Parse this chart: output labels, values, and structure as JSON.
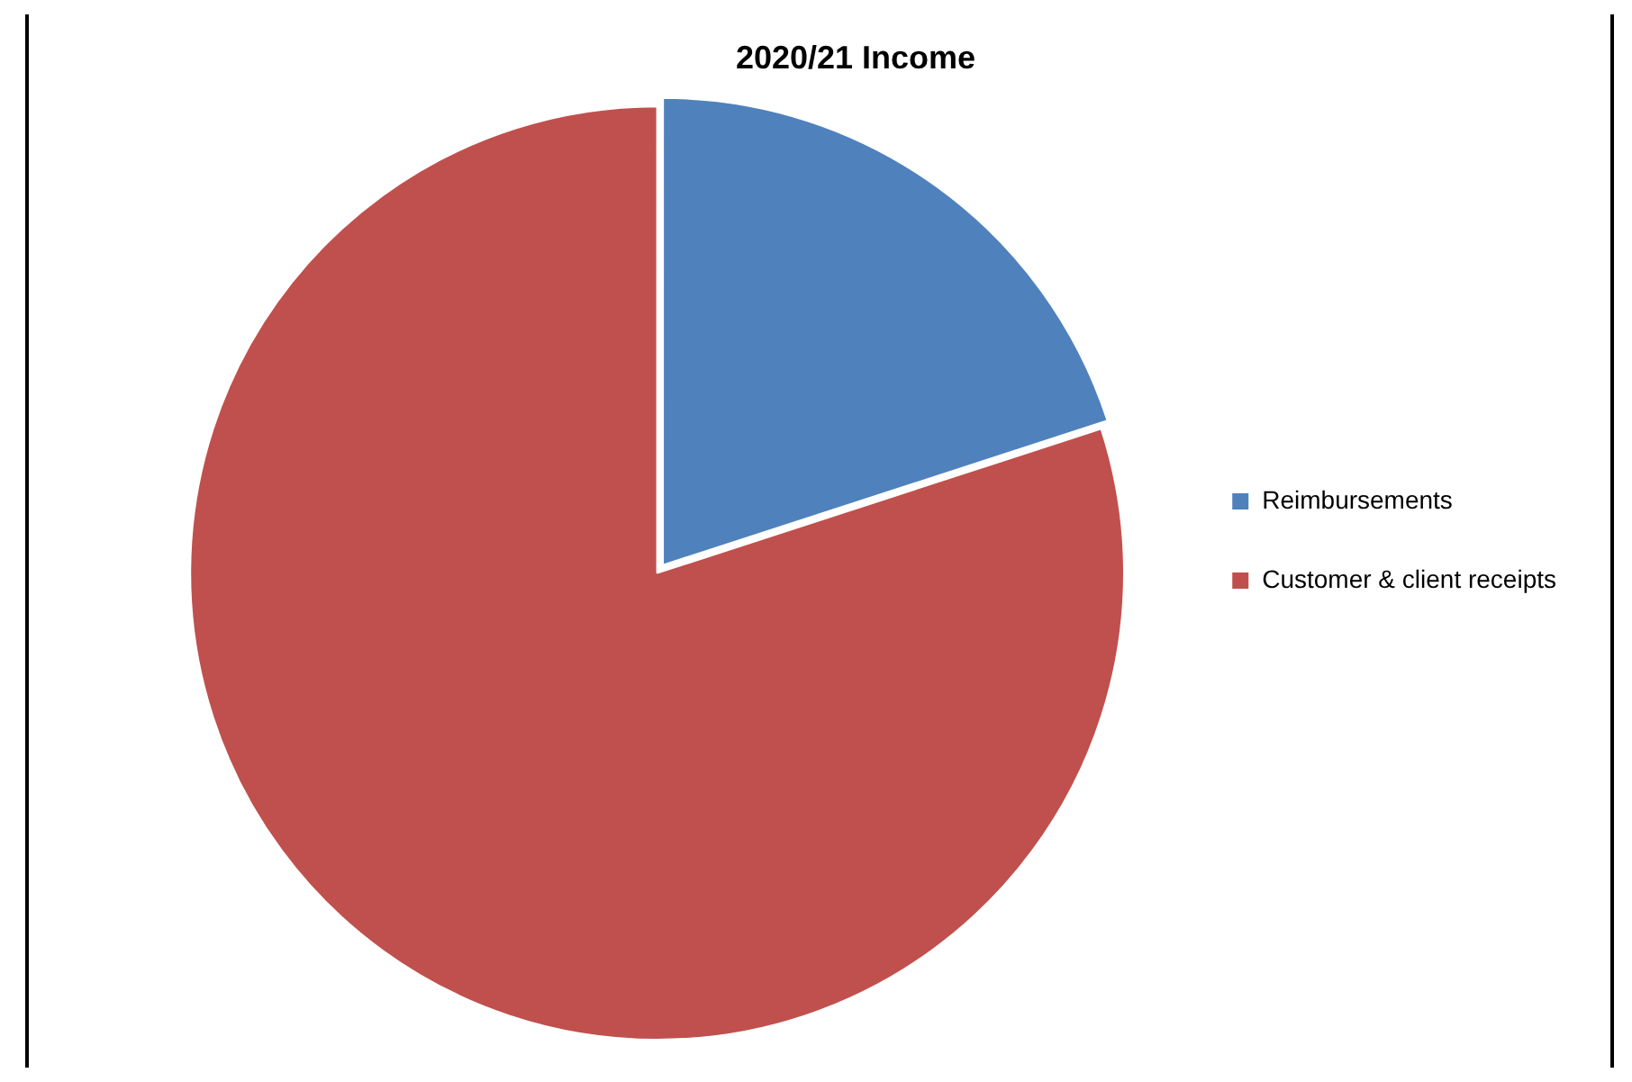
{
  "chart_data": {
    "type": "pie",
    "title": "2020/21 Income",
    "categories": [
      "Reimbursements",
      "Customer & client receipts"
    ],
    "values": [
      20,
      80
    ],
    "colors": [
      "#4f81bd",
      "#c0504d"
    ],
    "legend": "right"
  }
}
